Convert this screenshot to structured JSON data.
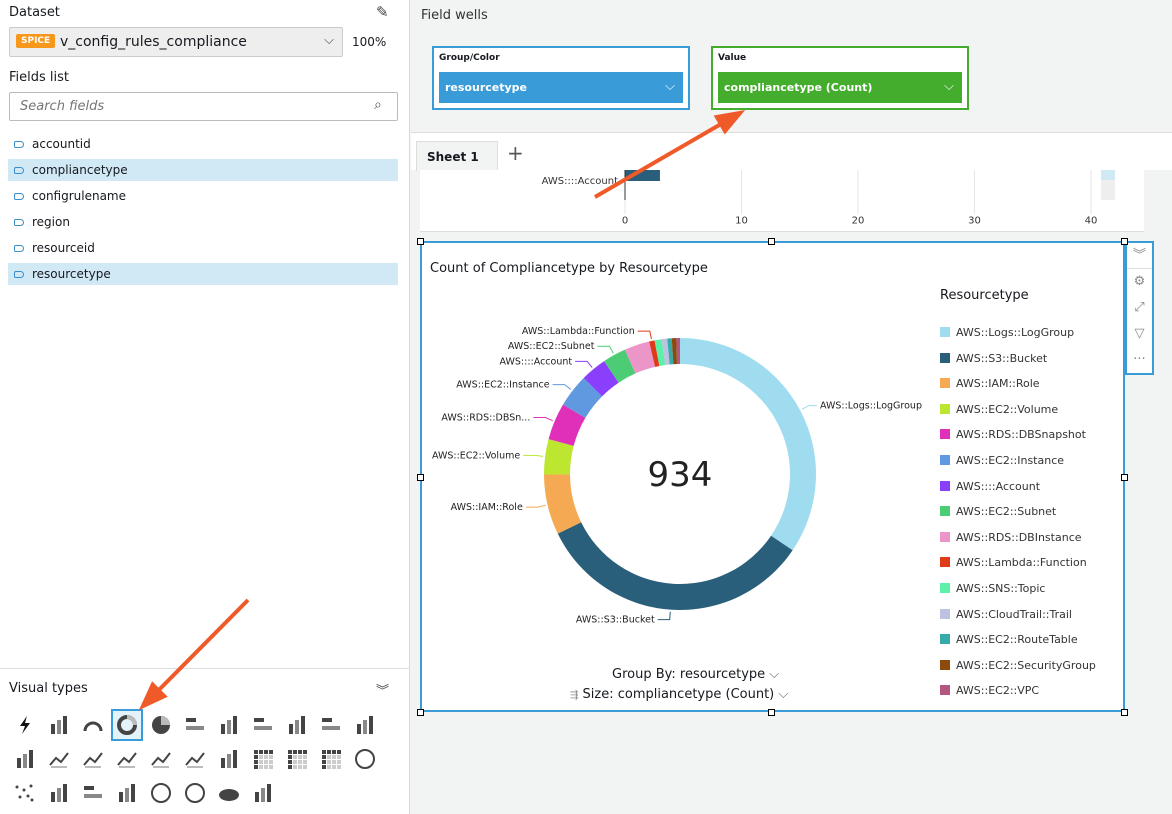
{
  "dataset": {
    "title": "Dataset",
    "badge": "SPICE",
    "name": "v_config_rules_compliance",
    "percent": "100%",
    "badge_color": "#f7981d"
  },
  "fields": {
    "title": "Fields list",
    "search_placeholder": "Search fields",
    "items": [
      {
        "label": "accountid",
        "selected": false
      },
      {
        "label": "compliancetype",
        "selected": true
      },
      {
        "label": "configrulename",
        "selected": false
      },
      {
        "label": "region",
        "selected": false
      },
      {
        "label": "resourceid",
        "selected": false
      },
      {
        "label": "resourcetype",
        "selected": true
      }
    ]
  },
  "visual_types": {
    "title": "Visual types",
    "selected": "donut-chart",
    "items": [
      "autograph",
      "kpi",
      "gauge",
      "donut-chart",
      "pie-chart",
      "horizontal-bar",
      "vertical-bar",
      "horizontal-stacked-bar",
      "vertical-stacked-bar",
      "horizontal-100-bar",
      "vertical-100-bar",
      "waterfall",
      "line",
      "area",
      "combo-clustered",
      "combo-stacked",
      "stacked-area",
      "box-plot",
      "pivot-table",
      "table",
      "heat-map",
      "tree-map",
      "scatter",
      "histogram",
      "funnel",
      "sankey",
      "filled-map",
      "points-on-map",
      "word-cloud",
      "insight"
    ]
  },
  "field_wells": {
    "title": "Field wells",
    "group": {
      "label": "Group/Color",
      "value": "resourcetype",
      "color": "#3a9bd9"
    },
    "value": {
      "label": "Value",
      "value": "compliancetype (Count)",
      "color": "#44ad2d"
    }
  },
  "sheets": {
    "tabs": [
      "Sheet 1"
    ],
    "add": "+"
  },
  "bar_chart_partial": {
    "category": "AWS::::Account",
    "ticks": [
      "0",
      "10",
      "20",
      "30",
      "40"
    ],
    "value": 3
  },
  "chart_data": {
    "type": "donut",
    "title": "Count of Compliancetype by Resourcetype",
    "total_label": "934",
    "legend_title": "Resourcetype",
    "legend_position": "right",
    "group_by": "Group By: resourcetype",
    "size_by": "Size: compliancetype (Count)",
    "slices": [
      {
        "name": "AWS::Logs::LogGroup",
        "value": 322,
        "color": "#a0dcef",
        "label": "AWS::Logs::LogGroup"
      },
      {
        "name": "AWS::S3::Bucket",
        "value": 311,
        "color": "#2a5f7b",
        "label": "AWS::S3::Bucket"
      },
      {
        "name": "AWS::IAM::Role",
        "value": 67,
        "color": "#f5a952",
        "label": "AWS::IAM::Role"
      },
      {
        "name": "AWS::EC2::Volume",
        "value": 39,
        "color": "#bce630",
        "label": "AWS::EC2::Volume"
      },
      {
        "name": "AWS::RDS::DBSnapshot",
        "value": 41,
        "color": "#e030b9",
        "label": "AWS::RDS::DBSn..."
      },
      {
        "name": "AWS::EC2::Instance",
        "value": 37,
        "color": "#6199e0",
        "label": "AWS::EC2::Instance"
      },
      {
        "name": "AWS::::Account",
        "value": 29,
        "color": "#8a3ffc",
        "label": "AWS::::Account"
      },
      {
        "name": "AWS::EC2::Subnet",
        "value": 26,
        "color": "#4ccc74",
        "label": "AWS::EC2::Subnet"
      },
      {
        "name": "AWS::RDS::DBInstance",
        "value": 28,
        "color": "#ec95c8",
        "label": ""
      },
      {
        "name": "AWS::Lambda::Function",
        "value": 6,
        "color": "#e03b18",
        "label": "AWS::Lambda::Function"
      },
      {
        "name": "AWS::SNS::Topic",
        "value": 8,
        "color": "#5cf0a8",
        "label": ""
      },
      {
        "name": "AWS::CloudTrail::Trail",
        "value": 6,
        "color": "#bcc2e0",
        "label": ""
      },
      {
        "name": "AWS::EC2::RouteTable",
        "value": 5,
        "color": "#36aaa8",
        "label": ""
      },
      {
        "name": "AWS::EC2::SecurityGroup",
        "value": 5,
        "color": "#8c4a0c",
        "label": ""
      },
      {
        "name": "AWS::EC2::VPC",
        "value": 4,
        "color": "#b35680",
        "label": ""
      }
    ]
  },
  "annotation_color": "#f05a28"
}
